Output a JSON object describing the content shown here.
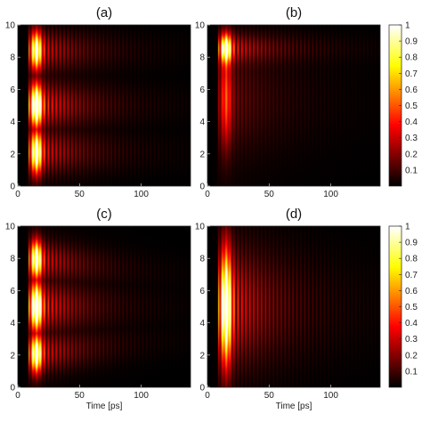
{
  "chart_data": [
    {
      "type": "heatmap",
      "title": "(a)",
      "xlabel": "",
      "xlim": [
        0,
        140
      ],
      "ylim": [
        0,
        10
      ],
      "xticks": [
        "0",
        "50",
        "100"
      ],
      "yticks": [
        "0",
        "2",
        "4",
        "6",
        "8",
        "10"
      ],
      "pattern": {
        "onset_ps": 15,
        "fringe_period_ps": 3.2,
        "fringe_decay_ps": 38,
        "envelope": "three-lobe",
        "lobe_centers": [
          2,
          5,
          8.5
        ]
      },
      "colorbar": false
    },
    {
      "type": "heatmap",
      "title": "(b)",
      "xlabel": "",
      "xlim": [
        0,
        140
      ],
      "ylim": [
        0,
        10
      ],
      "xticks": [
        "0",
        "50",
        "100"
      ],
      "yticks": [
        "0",
        "2",
        "4",
        "6",
        "8",
        "10"
      ],
      "pattern": {
        "onset_ps": 15,
        "fringe_period_ps": 3.2,
        "fringe_decay_ps": 42,
        "envelope": "top-peak",
        "lobe_centers": [
          8.5
        ]
      },
      "colorbar": true,
      "colorbar_ticks": [
        "0.1",
        "0.2",
        "0.3",
        "0.4",
        "0.5",
        "0.6",
        "0.7",
        "0.8",
        "0.9",
        "1"
      ]
    },
    {
      "type": "heatmap",
      "title": "(c)",
      "xlabel": "Time [ps]",
      "xlim": [
        0,
        140
      ],
      "ylim": [
        0,
        10
      ],
      "xticks": [
        "0",
        "50",
        "100"
      ],
      "yticks": [
        "0",
        "2",
        "4",
        "6",
        "8",
        "10"
      ],
      "pattern": {
        "onset_ps": 15,
        "fringe_period_ps": 3.2,
        "fringe_decay_ps": 36,
        "envelope": "fan",
        "lobe_centers": [
          2,
          5,
          8
        ]
      },
      "colorbar": false
    },
    {
      "type": "heatmap",
      "title": "(d)",
      "xlabel": "Time [ps]",
      "xlim": [
        0,
        140
      ],
      "ylim": [
        0,
        10
      ],
      "xticks": [
        "0",
        "50",
        "100"
      ],
      "yticks": [
        "0",
        "2",
        "4",
        "6",
        "8",
        "10"
      ],
      "pattern": {
        "onset_ps": 15,
        "fringe_period_ps": 3.2,
        "fringe_decay_ps": 40,
        "envelope": "central-broad",
        "lobe_centers": [
          5
        ]
      },
      "colorbar": true,
      "colorbar_ticks": [
        "0.1",
        "0.2",
        "0.3",
        "0.4",
        "0.5",
        "0.6",
        "0.7",
        "0.8",
        "0.9",
        "1"
      ]
    }
  ],
  "colormap": {
    "name": "hot",
    "stops": [
      "#000000",
      "#7a0000",
      "#e00000",
      "#ff8000",
      "#ffff40",
      "#ffffff"
    ]
  }
}
